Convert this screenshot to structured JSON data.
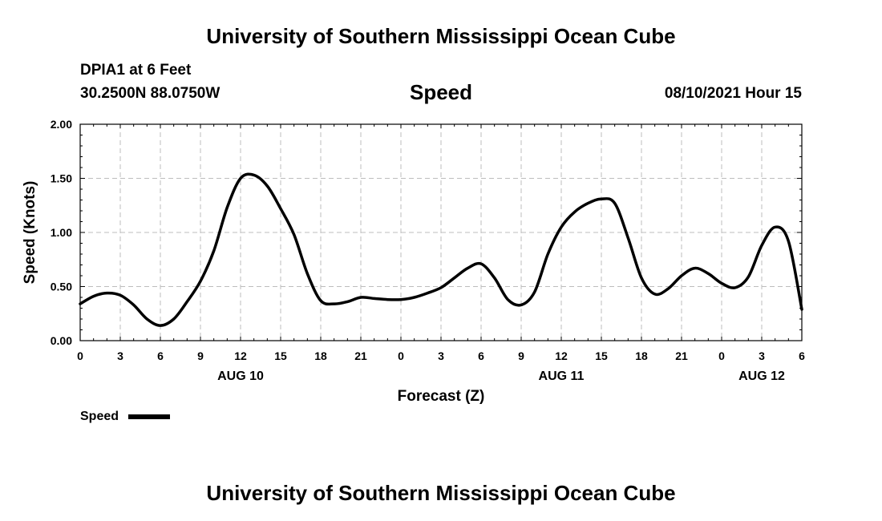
{
  "page": {
    "top_title": "University of Southern Mississippi Ocean Cube",
    "bottom_title": "University of Southern Mississippi Ocean Cube",
    "station": "DPIA1 at 6 Feet",
    "coords": "30.2500N  88.0750W",
    "datetime": "08/10/2021 Hour 15"
  },
  "chart_data": {
    "type": "line",
    "title": "Speed",
    "xlabel": "Forecast (Z)",
    "ylabel": "Speed (Knots)",
    "xlim": [
      0,
      54
    ],
    "ylim": [
      0,
      2
    ],
    "grid": true,
    "x_ticks": [
      0,
      3,
      6,
      9,
      12,
      15,
      18,
      21,
      24,
      27,
      30,
      33,
      36,
      39,
      42,
      45,
      48,
      51,
      54
    ],
    "x_tick_labels": [
      "0",
      "3",
      "6",
      "9",
      "12",
      "15",
      "18",
      "21",
      "0",
      "3",
      "6",
      "9",
      "12",
      "15",
      "18",
      "21",
      "0",
      "3",
      "6"
    ],
    "y_ticks": [
      0,
      0.5,
      1,
      1.5,
      2
    ],
    "y_tick_labels": [
      "0.00",
      "0.50",
      "1.00",
      "1.50",
      "2.00"
    ],
    "date_labels": [
      {
        "x": 12,
        "label": "AUG 10"
      },
      {
        "x": 36,
        "label": "AUG 11"
      },
      {
        "x": 51,
        "label": "AUG 12"
      }
    ],
    "legend": {
      "label": "Speed",
      "placement": "bottom-left"
    },
    "series": [
      {
        "name": "Speed",
        "x": [
          0,
          1,
          2,
          3,
          4,
          5,
          6,
          7,
          8,
          9,
          10,
          11,
          12,
          13,
          14,
          15,
          16,
          17,
          18,
          19,
          20,
          21,
          22,
          23,
          24,
          25,
          26,
          27,
          28,
          29,
          30,
          31,
          32,
          33,
          34,
          35,
          36,
          37,
          38,
          39,
          40,
          41,
          42,
          43,
          44,
          45,
          46,
          47,
          48,
          49,
          50,
          51,
          52,
          53,
          54
        ],
        "values": [
          0.34,
          0.41,
          0.44,
          0.42,
          0.33,
          0.2,
          0.14,
          0.2,
          0.36,
          0.55,
          0.83,
          1.23,
          1.5,
          1.53,
          1.43,
          1.22,
          0.98,
          0.62,
          0.37,
          0.34,
          0.36,
          0.4,
          0.39,
          0.38,
          0.38,
          0.4,
          0.44,
          0.49,
          0.58,
          0.67,
          0.71,
          0.58,
          0.38,
          0.33,
          0.45,
          0.8,
          1.05,
          1.19,
          1.27,
          1.31,
          1.27,
          0.95,
          0.58,
          0.43,
          0.48,
          0.6,
          0.67,
          0.62,
          0.53,
          0.49,
          0.59,
          0.88,
          1.05,
          0.92,
          0.29
        ]
      }
    ]
  }
}
